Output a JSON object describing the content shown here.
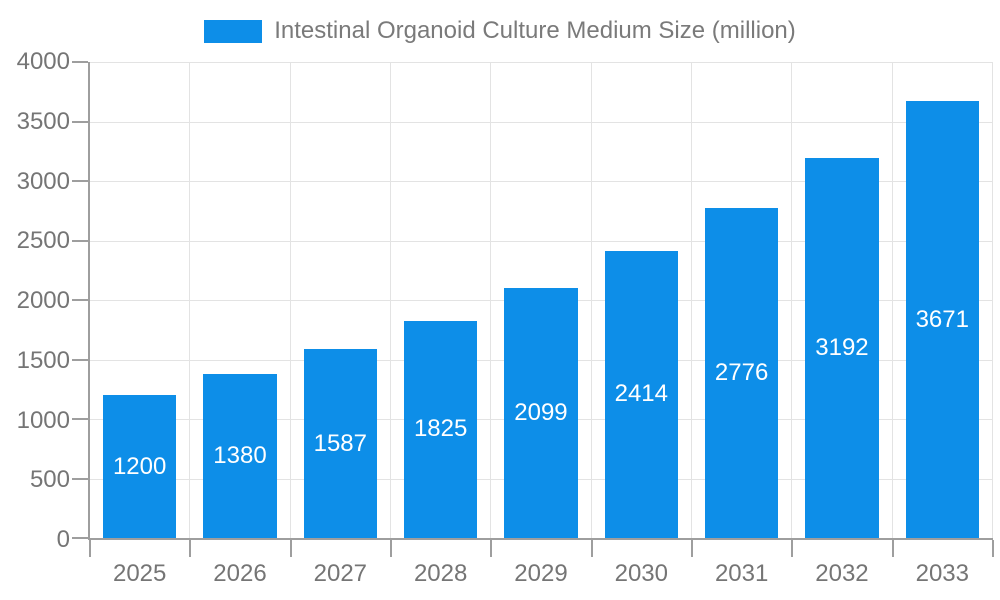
{
  "legend": {
    "position": "top",
    "items": [
      {
        "label": "Intestinal Organoid Culture Medium Size (million)",
        "swatch_color": "#0D8EE8"
      }
    ]
  },
  "chart_data": {
    "type": "bar",
    "title": "Intestinal Organoid Culture Medium Size (million)",
    "categories": [
      "2025",
      "2026",
      "2027",
      "2028",
      "2029",
      "2030",
      "2031",
      "2032",
      "2033"
    ],
    "values": [
      1200,
      1380,
      1587,
      1825,
      2099,
      2414,
      2776,
      3192,
      3671
    ],
    "xlabel": "",
    "ylabel": "",
    "ylim": [
      0,
      4000
    ],
    "ytick_step": 500,
    "ytick_labels": [
      "0",
      "500",
      "1000",
      "1500",
      "2000",
      "2500",
      "3000",
      "3500",
      "4000"
    ],
    "grid": true,
    "legend_position": "top",
    "bar_label_position": "center-inside"
  },
  "colors": {
    "bar": "#0D8EE8",
    "bar_label": "#FFFFFF",
    "axis_line": "#9E9E9E",
    "grid_line": "#E3E3E3",
    "tick": "#9E9E9E",
    "axis_text": "#757575",
    "legend_text": "#7A7A7A",
    "background": "#FFFFFF"
  }
}
